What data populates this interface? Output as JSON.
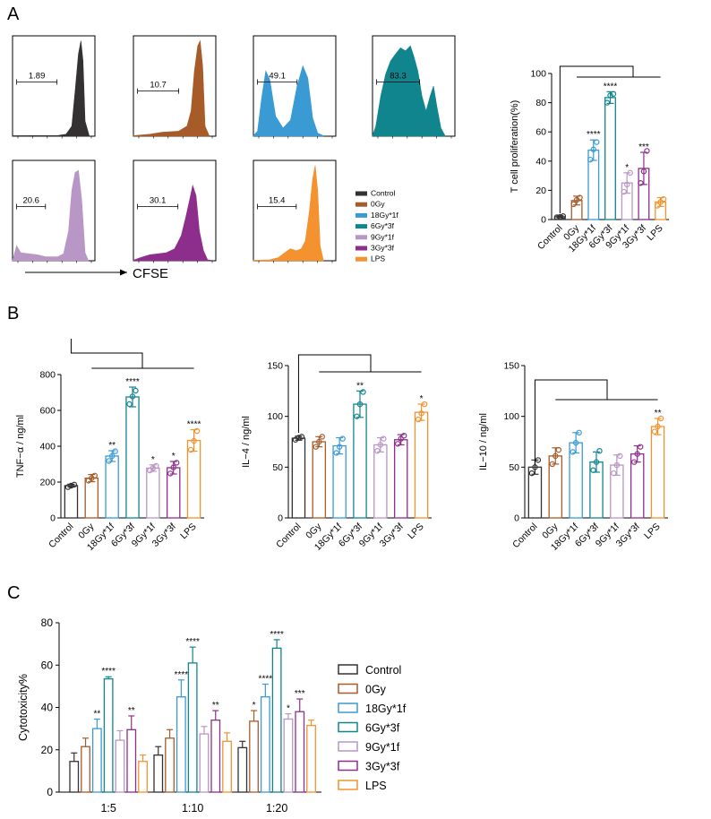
{
  "panel_labels": {
    "a": "A",
    "b": "B",
    "c": "C"
  },
  "colors": {
    "Control": "#333132",
    "0Gy": "#A65B29",
    "18Gy*1f": "#3A9AD4",
    "6Gy*3f": "#11858E",
    "9Gy*1f": "#B896C5",
    "3Gy*3f": "#8E2E8C",
    "LPS": "#F4922F"
  },
  "groups": [
    "Control",
    "0Gy",
    "18Gy*1f",
    "6Gy*3f",
    "9Gy*1f",
    "3Gy*3f",
    "LPS"
  ],
  "flow": {
    "xlabel": "CFSE",
    "histograms": [
      {
        "group": "Control",
        "gate_value": "1.89"
      },
      {
        "group": "0Gy",
        "gate_value": "10.7"
      },
      {
        "group": "18Gy*1f",
        "gate_value": "49.1"
      },
      {
        "group": "6Gy*3f",
        "gate_value": "83.3"
      },
      {
        "group": "9Gy*1f",
        "gate_value": "20.6"
      },
      {
        "group": "3Gy*3f",
        "gate_value": "30.1"
      },
      {
        "group": "LPS",
        "gate_value": "15.4"
      }
    ],
    "legend": [
      "Control",
      "0Gy",
      "18Gy*1f",
      "6Gy*3f",
      "9Gy*1f",
      "3Gy*3f",
      "LPS"
    ]
  },
  "chart_data": [
    {
      "id": "tcell",
      "type": "bar",
      "title": "",
      "ylabel": "T cell proliferation(%)",
      "ylim": [
        0,
        100
      ],
      "yticks": [
        0,
        20,
        40,
        60,
        80,
        100
      ],
      "categories": [
        "Control",
        "0Gy",
        "18Gy*1f",
        "6Gy*3f",
        "9Gy*1f",
        "3Gy*3f",
        "LPS"
      ],
      "values": [
        1.9,
        13,
        47.5,
        83.5,
        25,
        35,
        12
      ],
      "errors": [
        0.7,
        3,
        7,
        4,
        7,
        11,
        3
      ],
      "points": [
        [
          1.6,
          1.8,
          2.3
        ],
        [
          10.5,
          13.5,
          15
        ],
        [
          41,
          48,
          53
        ],
        [
          80,
          85,
          86
        ],
        [
          19,
          24,
          32
        ],
        [
          25,
          33,
          47
        ],
        [
          9.5,
          12,
          14
        ]
      ],
      "significance": [
        "",
        "",
        "****",
        "****",
        "*",
        "***",
        ""
      ]
    },
    {
      "id": "tnf",
      "type": "bar",
      "ylabel": "TNF−α / ng/ml",
      "ylim": [
        0,
        800
      ],
      "yticks": [
        0,
        200,
        400,
        600,
        800
      ],
      "categories": [
        "Control",
        "0Gy",
        "18Gy*1f",
        "6Gy*3f",
        "9Gy*1f",
        "3Gy*3f",
        "LPS"
      ],
      "values": [
        180,
        222,
        345,
        675,
        278,
        280,
        432
      ],
      "errors": [
        8,
        20,
        30,
        55,
        18,
        35,
        60
      ],
      "points": [
        [
          172,
          180,
          186
        ],
        [
          208,
          222,
          236
        ],
        [
          318,
          345,
          372
        ],
        [
          635,
          678,
          710
        ],
        [
          265,
          278,
          290
        ],
        [
          248,
          282,
          308
        ],
        [
          380,
          430,
          485
        ]
      ],
      "significance": [
        "",
        "",
        "**",
        "****",
        "*",
        "*",
        "****"
      ]
    },
    {
      "id": "il4",
      "type": "bar",
      "ylabel": "IL−4 / ng/ml",
      "ylim": [
        0,
        150
      ],
      "yticks": [
        0,
        50,
        100,
        150
      ],
      "categories": [
        "Control",
        "0Gy",
        "18Gy*1f",
        "6Gy*3f",
        "9Gy*1f",
        "3Gy*3f",
        "LPS"
      ],
      "values": [
        78.5,
        75,
        71,
        112,
        72,
        77,
        104
      ],
      "errors": [
        2,
        5,
        8,
        13,
        7,
        5,
        8
      ],
      "points": [
        [
          77,
          79,
          80
        ],
        [
          70,
          75,
          80
        ],
        [
          64,
          70,
          78
        ],
        [
          100,
          112,
          124
        ],
        [
          66,
          72,
          78
        ],
        [
          73,
          78,
          81
        ],
        [
          97,
          103,
          112
        ]
      ],
      "significance": [
        "",
        "",
        "",
        "**",
        "",
        "",
        "*"
      ]
    },
    {
      "id": "il10",
      "type": "bar",
      "ylabel": "IL−10 / ng/ml",
      "ylim": [
        0,
        150
      ],
      "yticks": [
        0,
        50,
        100,
        150
      ],
      "categories": [
        "Control",
        "0Gy",
        "18Gy*1f",
        "6Gy*3f",
        "9Gy*1f",
        "3Gy*3f",
        "LPS"
      ],
      "values": [
        50,
        61,
        74,
        55,
        52,
        63,
        90
      ],
      "errors": [
        7,
        8,
        10,
        10,
        10,
        8,
        8
      ],
      "points": [
        [
          44,
          50,
          57
        ],
        [
          53,
          61,
          67
        ],
        [
          65,
          74,
          84
        ],
        [
          47,
          55,
          66
        ],
        [
          44,
          52,
          61
        ],
        [
          55,
          63,
          70
        ],
        [
          85,
          90,
          98
        ]
      ],
      "significance": [
        "",
        "",
        "",
        "",
        "",
        "",
        "**"
      ]
    },
    {
      "id": "cytotox",
      "type": "bar",
      "ylabel": "Cytotoxicity%",
      "ylim": [
        0,
        80
      ],
      "yticks": [
        0,
        20,
        40,
        60,
        80
      ],
      "categories": [
        "1:5",
        "1:10",
        "1:20"
      ],
      "series": [
        {
          "name": "Control",
          "values": [
            14.5,
            17.5,
            21
          ],
          "errors": [
            4,
            4,
            3
          ],
          "significance": [
            "",
            "",
            ""
          ]
        },
        {
          "name": "0Gy",
          "values": [
            21.5,
            25.5,
            33.5
          ],
          "errors": [
            4,
            4,
            5
          ],
          "significance": [
            "",
            "",
            "*"
          ]
        },
        {
          "name": "18Gy*1f",
          "values": [
            30,
            45,
            45
          ],
          "errors": [
            4.5,
            8,
            6
          ],
          "significance": [
            "**",
            "****",
            "****"
          ]
        },
        {
          "name": "6Gy*3f",
          "values": [
            53.5,
            61,
            68
          ],
          "errors": [
            1,
            7.5,
            4
          ],
          "significance": [
            "****",
            "****",
            "****"
          ]
        },
        {
          "name": "9Gy*1f",
          "values": [
            24.5,
            27.5,
            34.5
          ],
          "errors": [
            4.5,
            3.5,
            2.5
          ],
          "significance": [
            "",
            "",
            "*"
          ]
        },
        {
          "name": "3Gy*3f",
          "values": [
            29.5,
            34,
            38
          ],
          "errors": [
            6.5,
            4.5,
            6
          ],
          "significance": [
            "**",
            "**",
            "***"
          ]
        },
        {
          "name": "LPS",
          "values": [
            14.5,
            24,
            31.5
          ],
          "errors": [
            3,
            4,
            2.5
          ],
          "significance": [
            "",
            "",
            ""
          ]
        }
      ]
    }
  ]
}
